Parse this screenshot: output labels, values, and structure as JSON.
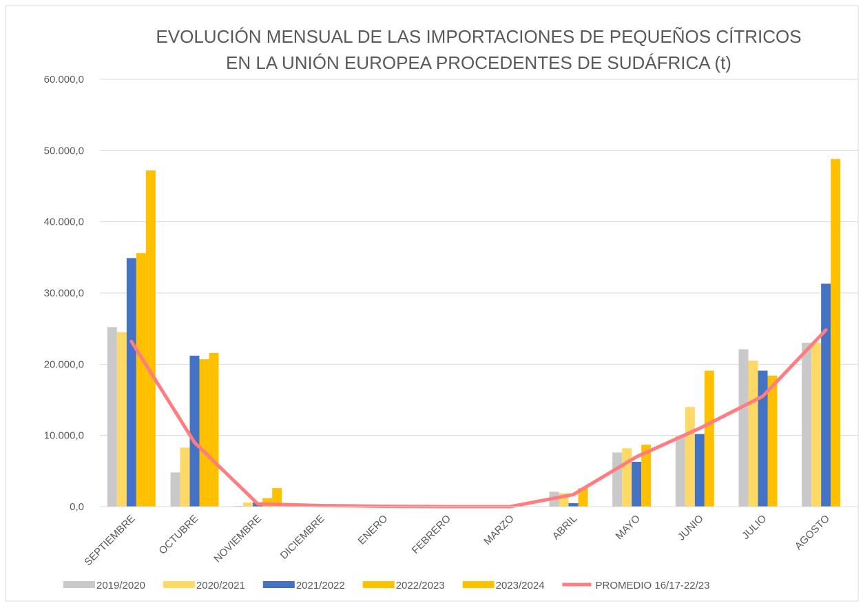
{
  "chart_data": {
    "type": "bar",
    "title": "EVOLUCIÓN MENSUAL DE LAS IMPORTACIONES DE PEQUEÑOS CÍTRICOS EN LA UNIÓN EUROPEA PROCEDENTES DE SUDÁFRICA  (t)",
    "categories": [
      "SEPTIEMBRE",
      "OCTUBRE",
      "NOVIEMBRE",
      "DICIEMBRE",
      "ENERO",
      "FEBRERO",
      "MARZO",
      "ABRIL",
      "MAYO",
      "JUNIO",
      "JULIO",
      "AGOSTO"
    ],
    "series": [
      {
        "name": "2019/2020",
        "color": "#c9c9c9",
        "values": [
          25200,
          4800,
          100,
          0,
          0,
          0,
          0,
          2100,
          7600,
          9900,
          22100,
          23000
        ]
      },
      {
        "name": "2020/2021",
        "color": "#ffd966",
        "values": [
          24500,
          8300,
          600,
          0,
          0,
          0,
          0,
          1900,
          8200,
          14000,
          20500,
          23000
        ]
      },
      {
        "name": "2021/2022",
        "color": "#4472c4",
        "values": [
          34900,
          21200,
          600,
          0,
          0,
          0,
          0,
          500,
          6300,
          10200,
          19100,
          31300
        ]
      },
      {
        "name": "2022/2023",
        "color": "#ffc000",
        "values": [
          35600,
          20700,
          1200,
          0,
          0,
          0,
          0,
          2600,
          8700,
          19100,
          18400,
          48800
        ]
      },
      {
        "name": "2023/2024",
        "color": "#ffc000",
        "values": [
          47200,
          21600,
          2600,
          null,
          null,
          null,
          null,
          null,
          null,
          null,
          null,
          null
        ]
      },
      {
        "name": "PROMEDIO 16/17-22/23",
        "color": "#ff7c80",
        "type": "line",
        "values": [
          23200,
          9000,
          400,
          150,
          50,
          0,
          0,
          1700,
          7000,
          11000,
          15500,
          24800
        ]
      }
    ],
    "ylim": [
      0,
      60000
    ],
    "yticks": [
      {
        "value": 0,
        "label": "0,0"
      },
      {
        "value": 10000,
        "label": "10.000,0"
      },
      {
        "value": 20000,
        "label": "20.000,0"
      },
      {
        "value": 30000,
        "label": "30.000,0"
      },
      {
        "value": 40000,
        "label": "40.000,0"
      },
      {
        "value": 50000,
        "label": "50.000,0"
      },
      {
        "value": 60000,
        "label": "60.000,0"
      }
    ],
    "grid": true,
    "legend": "bottom"
  }
}
